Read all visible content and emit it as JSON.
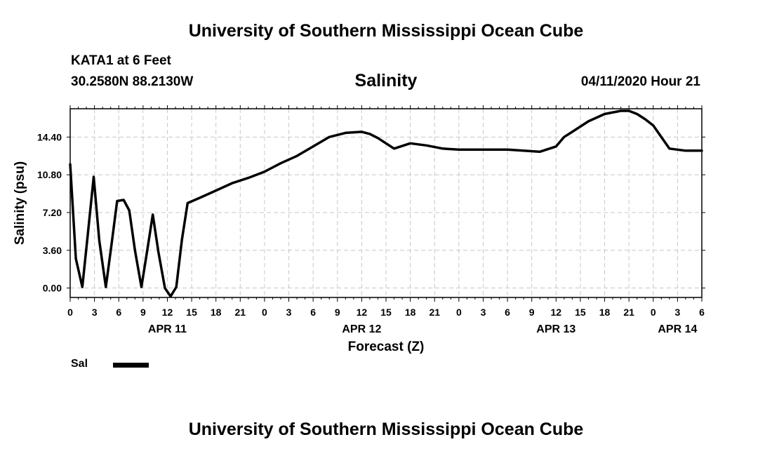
{
  "header": {
    "title": "University of Southern Mississippi Ocean Cube",
    "station": "KATA1 at 6 Feet",
    "coordinates": "30.2580N 88.2130W",
    "chart_title": "Salinity",
    "datetime": "04/11/2020 Hour 21"
  },
  "footer": {
    "title": "University of Southern Mississippi Ocean Cube"
  },
  "legend": {
    "label": "Sal"
  },
  "chart_data": {
    "type": "line",
    "title": "Salinity",
    "xlabel": "Forecast (Z)",
    "ylabel": "Salinity (psu)",
    "ylim": [
      -0.9,
      17.1
    ],
    "xlim": [
      0,
      78
    ],
    "grid": true,
    "legend_position": "bottom-left",
    "y_ticks": [
      "0.00",
      "3.60",
      "7.20",
      "10.80",
      "14.40"
    ],
    "y_tick_values": [
      0,
      3.6,
      7.2,
      10.8,
      14.4
    ],
    "x_tick_labels": [
      "0",
      "3",
      "6",
      "9",
      "12",
      "15",
      "18",
      "21",
      "0",
      "3",
      "6",
      "9",
      "12",
      "15",
      "18",
      "21",
      "0",
      "3",
      "6",
      "9",
      "12",
      "15",
      "18",
      "21",
      "0",
      "3",
      "6"
    ],
    "day_labels": [
      {
        "label": "APR 11",
        "hour": 12
      },
      {
        "label": "APR 12",
        "hour": 36
      },
      {
        "label": "APR 13",
        "hour": 60
      },
      {
        "label": "APR 14",
        "hour": 75
      }
    ],
    "series": [
      {
        "name": "Sal",
        "color": "#000000",
        "x": [
          0,
          0.7,
          1.5,
          2.2,
          2.9,
          3.6,
          4.4,
          5.1,
          5.8,
          6.6,
          7.3,
          8.0,
          8.8,
          9.5,
          10.2,
          10.9,
          11.7,
          12.4,
          13.1,
          13.8,
          14.5,
          16,
          18,
          20,
          22,
          24,
          26,
          28,
          30,
          32,
          34,
          36,
          37,
          38,
          40,
          42,
          44,
          46,
          48,
          50,
          52,
          54,
          56,
          58,
          60,
          61,
          62,
          64,
          66,
          68,
          69,
          70,
          71,
          72,
          74,
          76,
          78
        ],
        "values": [
          11.8,
          2.8,
          0.1,
          5.3,
          10.6,
          4.5,
          0.1,
          4.1,
          8.3,
          8.4,
          7.4,
          3.6,
          0.1,
          3.5,
          7.0,
          3.4,
          0.0,
          -0.8,
          0.1,
          4.6,
          8.1,
          8.6,
          9.3,
          10.0,
          10.5,
          11.1,
          11.9,
          12.6,
          13.5,
          14.4,
          14.8,
          14.9,
          14.7,
          14.3,
          13.3,
          13.8,
          13.6,
          13.3,
          13.2,
          13.2,
          13.2,
          13.2,
          13.1,
          13.0,
          13.5,
          14.4,
          14.9,
          15.9,
          16.6,
          16.9,
          16.9,
          16.6,
          16.1,
          15.5,
          13.3,
          13.1,
          13.1
        ]
      }
    ]
  }
}
